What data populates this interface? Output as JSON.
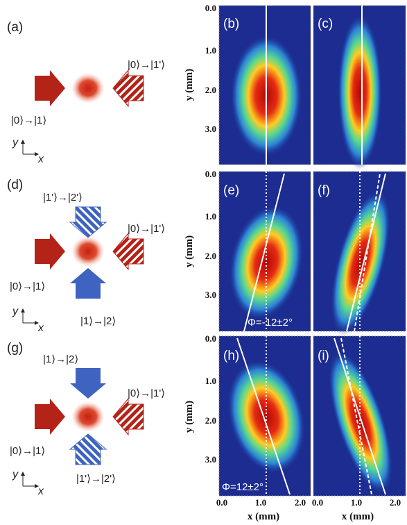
{
  "left_panels": [
    {
      "label": "(a)",
      "transitions": [
        "|0⟩→|1'⟩",
        "|0⟩→|1⟩"
      ],
      "axes": [
        "y",
        "x"
      ]
    },
    {
      "label": "(d)",
      "transitions": [
        "|1'⟩→|2'⟩",
        "|0⟩→|1'⟩",
        "|0⟩→|1⟩",
        "|1⟩→|2⟩"
      ],
      "axes": [
        "y",
        "x"
      ]
    },
    {
      "label": "(g)",
      "transitions": [
        "|1⟩→|2⟩",
        "|0⟩→|1'⟩",
        "|0⟩→|1⟩",
        "|1'⟩→|2'⟩"
      ],
      "axes": [
        "y",
        "x"
      ]
    }
  ],
  "image_panels": [
    {
      "label": "(b)"
    },
    {
      "label": "(c)"
    },
    {
      "label": "(e)",
      "annotation": "Φ=-12±2°"
    },
    {
      "label": "(f)"
    },
    {
      "label": "(h)",
      "annotation": "Φ=12±2°"
    },
    {
      "label": "(i)"
    }
  ],
  "y_axes": [
    {
      "label": "y (mm)",
      "ticks": [
        "0.0",
        "1.0",
        "2.0",
        "3.0"
      ]
    },
    {
      "label": "y (mm)",
      "ticks": [
        "0.0",
        "1.0",
        "2.0",
        "3.0"
      ]
    },
    {
      "label": "y (mm)",
      "ticks": [
        "0.0",
        "1.0",
        "2.0",
        "3.0"
      ]
    }
  ],
  "x_axes": [
    {
      "label": "x (mm)",
      "ticks": [
        "0.0",
        "1.0",
        "2.0"
      ]
    },
    {
      "label": "x (mm)",
      "ticks": [
        "0.0",
        "1.0",
        "2.0"
      ]
    }
  ]
}
